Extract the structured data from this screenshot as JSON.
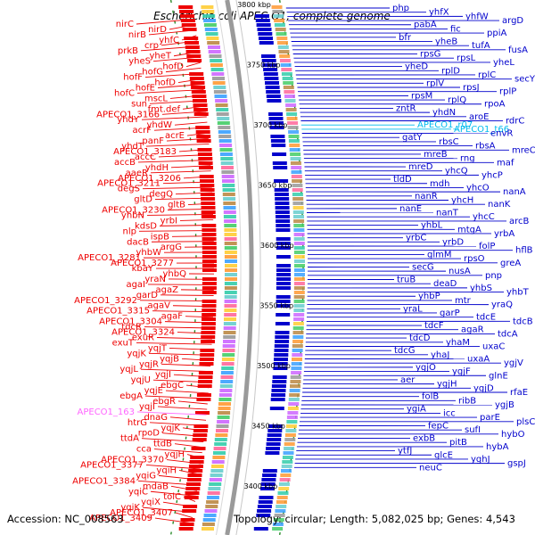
{
  "title": "Escherichia coli APEC O1, complete genome",
  "footer": {
    "accession": "Accession: NC_008563",
    "info": "Topology: circular; Length: 5,082,025 bp; Genes: 4,543"
  },
  "colors": {
    "left_strand": "#ee0000",
    "right_strand": "#0000cc",
    "rna": "#00bbee",
    "highlight": "#ff66ff",
    "ruler": "#9a9a9a",
    "tick": "#2a8a2a"
  },
  "ruler_marks": [
    "3800 kbp",
    "3750 kbp",
    "3700 kbp",
    "3650 kbp",
    "3600 kbp",
    "3550 kbp",
    "3500 kbp",
    "3450 kbp",
    "3400 kbp"
  ],
  "left_labels": [
    "nirC",
    "nirD",
    "nirB",
    "yhfC",
    "crp",
    "prkB",
    "yheT",
    "yheS",
    "hofD",
    "hofG",
    "hofF",
    "hofD",
    "hofE",
    "hofC",
    "mscL",
    "sun",
    "fmt.def",
    "APECO1_3166",
    "yhdY",
    "yhdW",
    "acrF",
    "acrE",
    "panF",
    "yhdT",
    "APECO1_3183",
    "accC",
    "accB",
    "yhdH",
    "aaeR",
    "APECO1_3206",
    "APECO1_3211",
    "degS",
    "degQ",
    "gltD",
    "gltB",
    "APECO1_3230",
    "yhbN",
    "yrbI",
    "kdsD",
    "nlp",
    "ispB",
    "dacB",
    "argG",
    "yhbW",
    "APECO1_3281",
    "APECO1_3277",
    "kbaY",
    "yhbQ",
    "yraN",
    "agaI",
    "agaZ",
    "garD",
    "APECO1_3292",
    "agaV",
    "APECO1_3315",
    "agaF",
    "APECO1_3304",
    "tdcR",
    "APECO1_3324",
    "exuR",
    "exuT",
    "yqjT",
    "yqjK",
    "yqjB",
    "yqjR",
    "yqjL",
    "yqjI",
    "yqjU",
    "ebgC",
    "yqjE",
    "ebgA",
    "ebgR",
    "yqjI",
    "APECO1_163",
    "dnaG",
    "htrG",
    "yqjK",
    "rpoD",
    "ttdA",
    "ttdB",
    "cca",
    "yqjH",
    "APECO1_3370",
    "APECO1_3377",
    "yqiH",
    "yqiG",
    "APECO1_3384",
    "mdaB",
    "yqiC",
    "tolC",
    "yqiX",
    "yqiK",
    "APECO1_3407",
    "APECO1_3409"
  ],
  "right_labels": [
    "php",
    "yhfX",
    "yhfW",
    "argD",
    "pabA",
    "fic",
    "ppiA",
    "bfr",
    "yheB",
    "tufA",
    "fusA",
    "rpsG",
    "rpsL",
    "yheL",
    "yheD",
    "rplD",
    "rplC",
    "secY",
    "rplV",
    "rpsJ",
    "rplP",
    "rpsM",
    "rplQ",
    "rpoA",
    "zntR",
    "yhdN",
    "aroE",
    "rdrC",
    "APECO1_r07",
    "APECO1_t66",
    "envR",
    "gatY",
    "rbsC",
    "rbsA",
    "mreC",
    "mreB",
    "rng",
    "maf",
    "mreD",
    "yhcQ",
    "yhcP",
    "tldD",
    "mdh",
    "yhcO",
    "nanA",
    "nanR",
    "yhcH",
    "nanK",
    "nanE",
    "nanT",
    "yhcC",
    "arcB",
    "yhbL",
    "mtgA",
    "yrbA",
    "yrbC",
    "yrbD",
    "folP",
    "hflB",
    "glmM",
    "rpsO",
    "greA",
    "secG",
    "nusA",
    "pnp",
    "truB",
    "deaD",
    "yhbS",
    "yhbT",
    "yhbP",
    "mtr",
    "yraQ",
    "yraL",
    "garP",
    "tdcE",
    "tdcB",
    "tdcF",
    "agaR",
    "tdcA",
    "tdcD",
    "yhaM",
    "uxaC",
    "tdcG",
    "yhaJ",
    "uxaA",
    "ygjV",
    "ygjO",
    "ygjF",
    "glnE",
    "aer",
    "ygjH",
    "ygjD",
    "rfaE",
    "folB",
    "ribB",
    "ygjB",
    "ygiA",
    "icc",
    "parE",
    "plsC",
    "fepC",
    "sufI",
    "hybO",
    "exbB",
    "pitB",
    "hybA",
    "ytfJ",
    "glcE",
    "yghJ",
    "gspJ",
    "neuC"
  ]
}
